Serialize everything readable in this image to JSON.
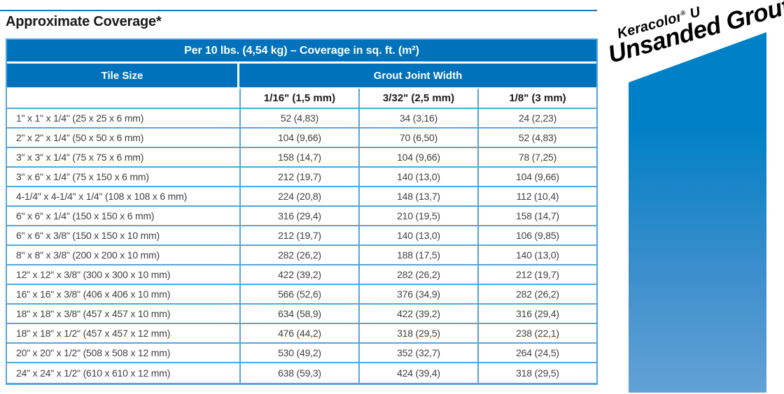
{
  "page": {
    "title": "Approximate Coverage*"
  },
  "brand": {
    "name": "Keracolor",
    "registered_mark": "®",
    "name_suffix": "U",
    "subtitle": "Unsanded Grout",
    "panel_color_top": "#0082C8",
    "panel_color_bottom": "#62A2D6"
  },
  "colors": {
    "header_blue": "#0072BC",
    "border_light_blue": "#52A7DC",
    "top_rule_blue": "#1C75BB"
  },
  "table": {
    "span_header": "Per 10 lbs. (4,54 kg) – Coverage in sq. ft. (m²)",
    "col_group_left": "Tile Size",
    "col_group_right": "Grout Joint Width",
    "columns": [
      "1/16\" (1,5 mm)",
      "3/32\" (2,5 mm)",
      "1/8\" (3 mm)"
    ],
    "rows": [
      {
        "tile_size": "1\" x 1\" x 1/4\" (25 x 25 x 6 mm)",
        "values": [
          "52 (4,83)",
          "34 (3,16)",
          "24 (2,23)"
        ]
      },
      {
        "tile_size": "2\" x 2\" x 1/4\" (50 x 50 x 6 mm)",
        "values": [
          "104 (9,66)",
          "70 (6,50)",
          "52 (4,83)"
        ]
      },
      {
        "tile_size": "3\" x 3\" x 1/4\" (75 x 75 x 6 mm)",
        "values": [
          "158 (14,7)",
          "104 (9,66)",
          "78 (7,25)"
        ]
      },
      {
        "tile_size": "3\" x 6\" x 1/4\" (75 x 150 x 6 mm)",
        "values": [
          "212 (19,7)",
          "140 (13,0)",
          "104 (9,66)"
        ]
      },
      {
        "tile_size": "4-1/4\" x 4-1/4\" x 1/4\" (108 x 108 x 6 mm)",
        "values": [
          "224 (20,8)",
          "148 (13,7)",
          "112 (10,4)"
        ]
      },
      {
        "tile_size": "6\" x 6\" x 1/4\" (150 x 150 x 6 mm)",
        "values": [
          "316 (29,4)",
          "210 (19,5)",
          "158 (14,7)"
        ]
      },
      {
        "tile_size": "6\" x 6\" x 3/8\" (150 x 150 x 10 mm)",
        "values": [
          "212 (19,7)",
          "140 (13,0)",
          "106 (9,85)"
        ]
      },
      {
        "tile_size": "8\" x 8\" x 3/8\" (200 x 200 x 10 mm)",
        "values": [
          "282 (26,2)",
          "188 (17,5)",
          "140 (13,0)"
        ]
      },
      {
        "tile_size": "12\" x 12\" x 3/8\" (300 x 300 x 10 mm)",
        "values": [
          "422 (39,2)",
          "282 (26,2)",
          "212 (19,7)"
        ]
      },
      {
        "tile_size": "16\" x 16\" x 3/8\" (406 x 406 x 10 mm)",
        "values": [
          "566 (52,6)",
          "376 (34,9)",
          "282 (26,2)"
        ]
      },
      {
        "tile_size": "18\" x 18\" x 3/8\" (457 x 457 x 10 mm)",
        "values": [
          "634 (58,9)",
          "422 (39,2)",
          "316 (29,4)"
        ]
      },
      {
        "tile_size": "18\" x 18\" x 1/2\" (457 x 457 x 12 mm)",
        "values": [
          "476 (44,2)",
          "318 (29,5)",
          "238 (22,1)"
        ]
      },
      {
        "tile_size": "20\" x 20\" x 1/2\" (508 x 508 x 12 mm)",
        "values": [
          "530 (49,2)",
          "352 (32,7)",
          "264 (24,5)"
        ]
      },
      {
        "tile_size": "24\" x 24\" x 1/2\" (610 x 610 x 12 mm)",
        "values": [
          "638 (59,3)",
          "424 (39,4)",
          "318 (29,5)"
        ]
      }
    ]
  }
}
